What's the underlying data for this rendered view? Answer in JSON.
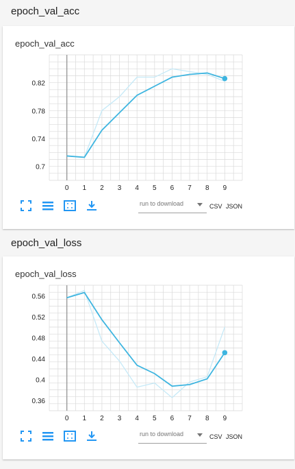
{
  "colors": {
    "accent": "#2196f3",
    "line": "#3eb5e0",
    "line_raw": "#c5e9f7",
    "grid": "#d9d9d9",
    "axis": "#9e9e9e"
  },
  "sections": [
    {
      "header": "epoch_val_acc",
      "card_title": "epoch_val_acc",
      "toolbar": {
        "expand_icon": "fullscreen-icon",
        "data_icon": "list-icon",
        "fit_icon": "fit-domain-icon",
        "download_icon": "download-icon",
        "select_label": "run to download",
        "csv_label": "CSV",
        "json_label": "JSON"
      }
    },
    {
      "header": "epoch_val_loss",
      "card_title": "epoch_val_loss",
      "toolbar": {
        "expand_icon": "fullscreen-icon",
        "data_icon": "list-icon",
        "fit_icon": "fit-domain-icon",
        "download_icon": "download-icon",
        "select_label": "run to download",
        "csv_label": "CSV",
        "json_label": "JSON"
      }
    }
  ],
  "chart_data": [
    {
      "type": "line",
      "x": [
        0,
        1,
        2,
        3,
        4,
        5,
        6,
        7,
        8,
        9
      ],
      "xticks": [
        "0",
        "1",
        "2",
        "3",
        "4",
        "5",
        "6",
        "7",
        "8",
        "9"
      ],
      "yticks": [
        "0.7",
        "0.74",
        "0.78",
        "0.82"
      ],
      "ytick_values": [
        0.7,
        0.74,
        0.78,
        0.82
      ],
      "ylim": [
        0.68,
        0.86
      ],
      "xlim": [
        -1,
        10
      ],
      "series": [
        {
          "role": "raw",
          "values": [
            0.715,
            0.713,
            0.78,
            0.8,
            0.828,
            0.828,
            0.84,
            0.836,
            0.832,
            0.822
          ]
        },
        {
          "role": "smoothed",
          "values": [
            0.715,
            0.713,
            0.752,
            0.777,
            0.802,
            0.815,
            0.828,
            0.832,
            0.834,
            0.826
          ]
        }
      ],
      "grid": true
    },
    {
      "type": "line",
      "x": [
        0,
        1,
        2,
        3,
        4,
        5,
        6,
        7,
        8,
        9
      ],
      "xticks": [
        "0",
        "1",
        "2",
        "3",
        "4",
        "5",
        "6",
        "7",
        "8",
        "9"
      ],
      "yticks": [
        "0.36",
        "0.4",
        "0.44",
        "0.48",
        "0.52",
        "0.56"
      ],
      "ytick_values": [
        0.36,
        0.4,
        0.44,
        0.48,
        0.52,
        0.56
      ],
      "ylim": [
        0.34,
        0.58
      ],
      "xlim": [
        -1,
        10
      ],
      "series": [
        {
          "role": "raw",
          "values": [
            0.556,
            0.57,
            0.473,
            0.435,
            0.385,
            0.393,
            0.365,
            0.395,
            0.405,
            0.5
          ]
        },
        {
          "role": "smoothed",
          "values": [
            0.556,
            0.566,
            0.514,
            0.47,
            0.427,
            0.411,
            0.387,
            0.39,
            0.401,
            0.451
          ]
        }
      ],
      "grid": true
    }
  ]
}
